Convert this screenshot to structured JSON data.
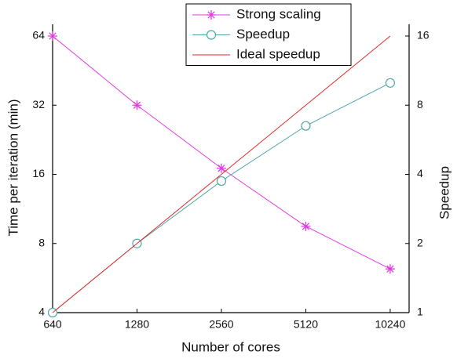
{
  "chart_data": {
    "type": "line",
    "x_label": "Number of cores",
    "y_label": "Time per iteration (min)",
    "y2_label": "Speedup",
    "x": [
      640,
      1280,
      2560,
      5120,
      10240
    ],
    "xlim": [
      640,
      11960
    ],
    "xticks": [
      640,
      1280,
      2560,
      5120,
      10240
    ],
    "xscale": "log",
    "ylim": [
      4,
      72
    ],
    "yticks": [
      4,
      8,
      16,
      32,
      64
    ],
    "yscale": "log",
    "y2lim": [
      1,
      18
    ],
    "y2ticks": [
      1,
      2,
      4,
      8,
      16
    ],
    "y2scale": "log",
    "legend": "top",
    "series": [
      {
        "name": "Strong scaling",
        "color": "#e23de2",
        "marker": "asterisk",
        "values": [
          64,
          32,
          17,
          9.5,
          6.2
        ]
      },
      {
        "name": "Speedup",
        "color": "#4fa8a8",
        "marker": "circle",
        "axis": "y2",
        "values": [
          1,
          2,
          3.74,
          6.5,
          10
        ]
      },
      {
        "name": "Ideal speedup",
        "color": "#e02a2a",
        "marker": "none",
        "axis": "y2",
        "values": [
          1,
          2,
          4,
          8,
          16
        ]
      }
    ]
  }
}
